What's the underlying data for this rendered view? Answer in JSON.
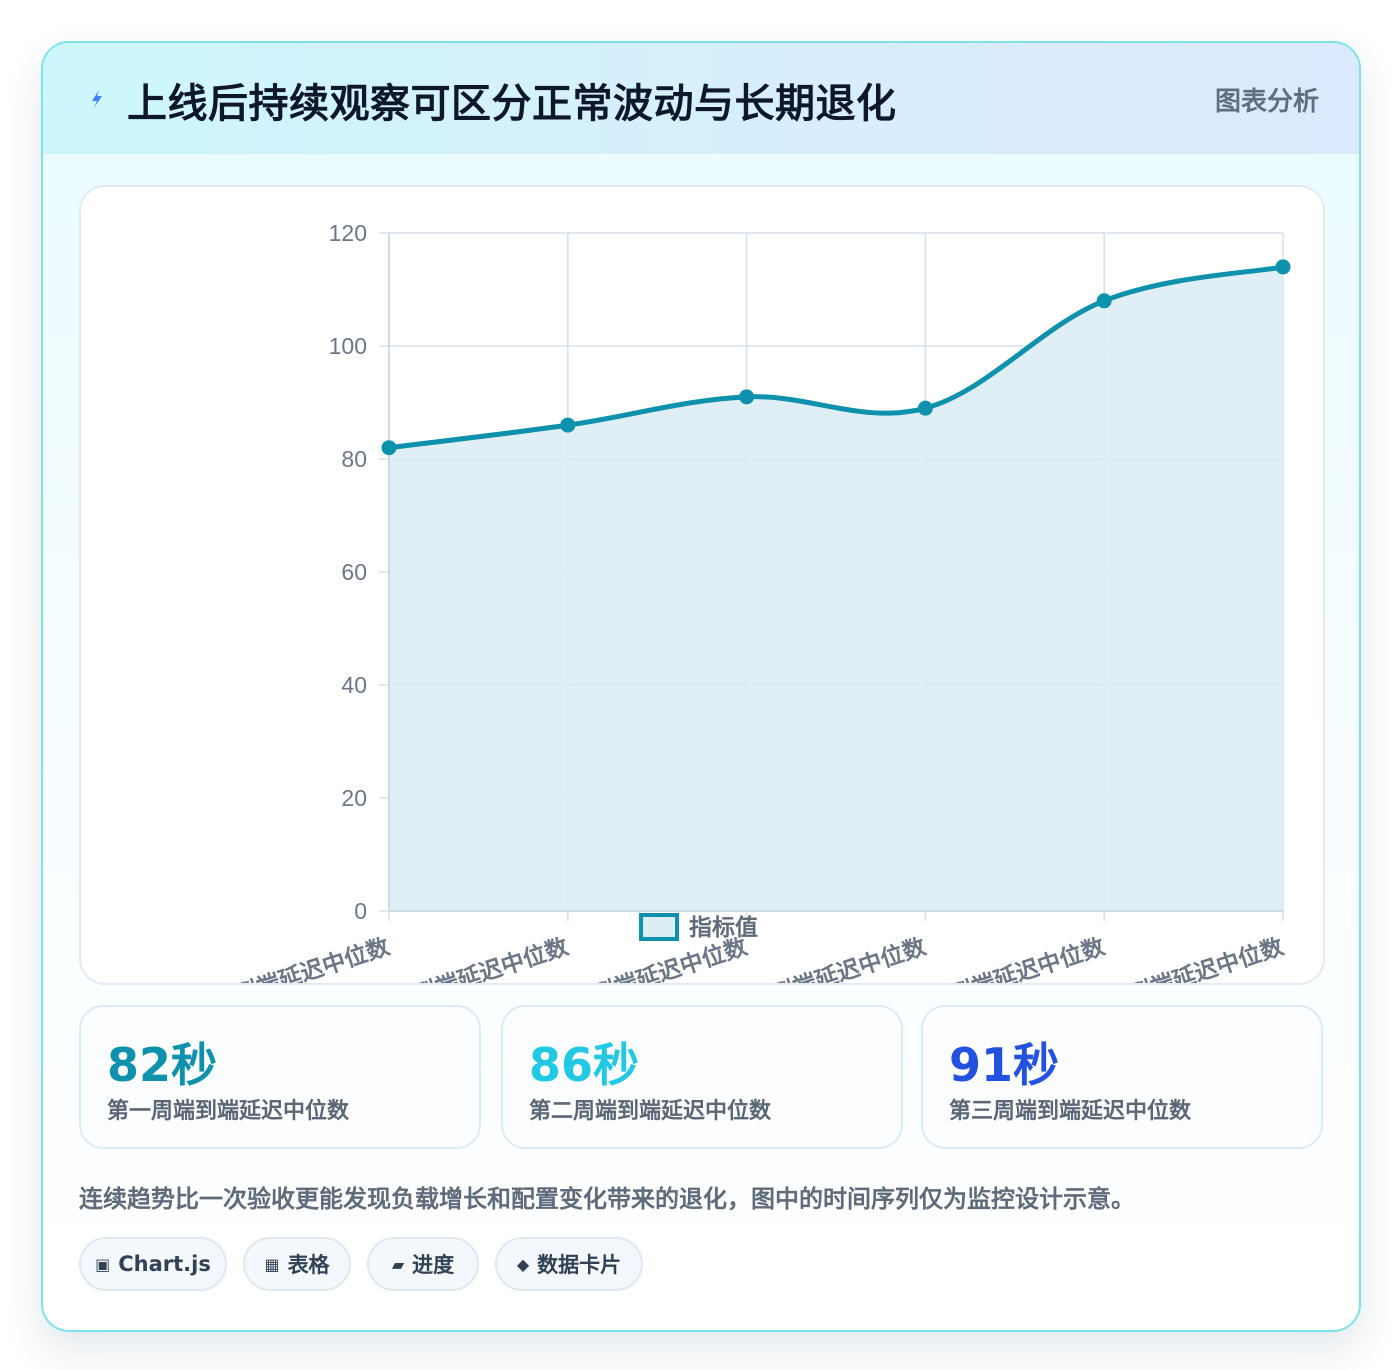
{
  "header": {
    "title": "上线后持续观察可区分正常波动与长期退化",
    "tag": "图表分析",
    "icon": "lightning-icon"
  },
  "chart_data": {
    "type": "line",
    "categories": [
      "第一周端到端延迟中位数",
      "第二周端到端延迟中位数",
      "第三周端到端延迟中位数",
      "第四周端到端延迟中位数",
      "第五周端到端延迟中位数",
      "第六周端到端延迟中位数"
    ],
    "series": [
      {
        "name": "指标值",
        "values": [
          82,
          86,
          91,
          89,
          108,
          114
        ]
      }
    ],
    "ylim": [
      0,
      120
    ],
    "yticks": [
      0,
      20,
      40,
      60,
      80,
      100,
      120
    ],
    "fill": true,
    "grid": true,
    "legend_position": "bottom",
    "colors": {
      "line": "#0e91ad",
      "fill": "#dcedf4",
      "grid": "#d6e1ec"
    }
  },
  "stats": [
    {
      "value": "82秒",
      "label": "第一周端到端延迟中位数",
      "color": "#0e91ad"
    },
    {
      "value": "86秒",
      "label": "第二周端到端延迟中位数",
      "color": "#22c9e4"
    },
    {
      "value": "91秒",
      "label": "第三周端到端延迟中位数",
      "color": "#2452e0"
    }
  ],
  "description": "连续趋势比一次验收更能发现负载增长和配置变化带来的退化，图中的时间序列仅为监控设计示意。",
  "chips": [
    {
      "icon": "▣",
      "label": "Chart.js"
    },
    {
      "icon": "▦",
      "label": "表格"
    },
    {
      "icon": "▰",
      "label": "进度"
    },
    {
      "icon": "◆",
      "label": "数据卡片"
    }
  ]
}
